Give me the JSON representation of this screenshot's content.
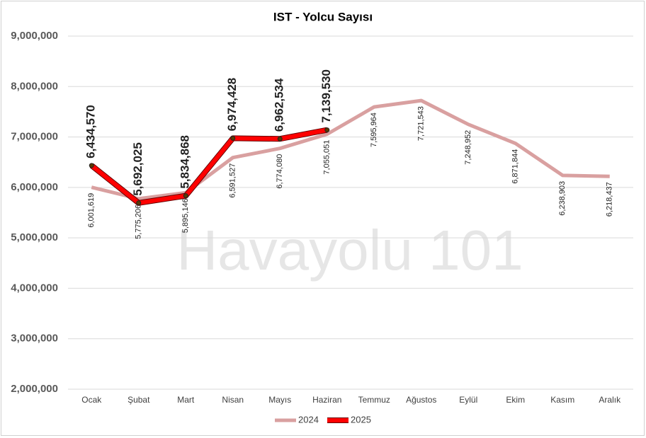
{
  "chart_data": {
    "type": "line",
    "title": "IST - Yolcu Sayısı",
    "watermark": "Havayolu 101",
    "categories": [
      "Ocak",
      "Şubat",
      "Mart",
      "Nisan",
      "Mayıs",
      "Haziran",
      "Temmuz",
      "Ağustos",
      "Eylül",
      "Ekim",
      "Kasım",
      "Aralık"
    ],
    "series": [
      {
        "name": "2024",
        "color": "#d9a0a0",
        "values": [
          6001619,
          5775206,
          5895146,
          6591527,
          6774080,
          7055051,
          7595964,
          7721543,
          7248952,
          6871844,
          6238903,
          6218437
        ],
        "value_labels": [
          "6,001,619",
          "5,775,206",
          "5,895,146",
          "6,591,527",
          "6,774,080",
          "7,055,051",
          "7,595,964",
          "7,721,543",
          "7,248,952",
          "6,871,844",
          "6,238,903",
          "6,218,437"
        ]
      },
      {
        "name": "2025",
        "color": "#ff0000",
        "values": [
          6434570,
          5692025,
          5834868,
          6974428,
          6962534,
          7139530,
          null,
          null,
          null,
          null,
          null,
          null
        ],
        "value_labels": [
          "6,434,570",
          "5,692,025",
          "5,834,868",
          "6,974,428",
          "6,962,534",
          "7,139,530",
          null,
          null,
          null,
          null,
          null,
          null
        ]
      }
    ],
    "ylim": [
      2000000,
      9000000
    ],
    "yticks": [
      {
        "value": 2000000,
        "label": "2,000,000"
      },
      {
        "value": 3000000,
        "label": "3,000,000"
      },
      {
        "value": 4000000,
        "label": "4,000,000"
      },
      {
        "value": 5000000,
        "label": "5,000,000"
      },
      {
        "value": 6000000,
        "label": "6,000,000"
      },
      {
        "value": 7000000,
        "label": "7,000,000"
      },
      {
        "value": 8000000,
        "label": "8,000,000"
      },
      {
        "value": 9000000,
        "label": "9,000,000"
      }
    ],
    "grid": true,
    "legend": "bottom"
  }
}
